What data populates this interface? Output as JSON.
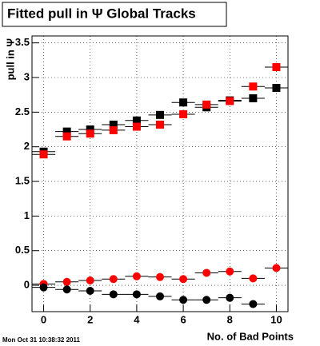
{
  "chart_data": {
    "type": "scatter",
    "title": "Fitted pull in Ψ   Global Tracks",
    "x_label": "No. of Bad Points",
    "y_label": "pull in Ψ",
    "footer": "Mon Oct 31 10:38:32 2011",
    "x": [
      0,
      1,
      2,
      3,
      4,
      5,
      6,
      7,
      8,
      9,
      10
    ],
    "series": [
      {
        "color": "#000000",
        "marker": "square",
        "values": [
          1.93,
          2.22,
          2.25,
          2.32,
          2.38,
          2.46,
          2.64,
          2.57,
          2.67,
          2.7,
          2.85
        ]
      },
      {
        "color": "#ff0000",
        "marker": "square",
        "values": [
          1.89,
          2.15,
          2.19,
          2.24,
          2.29,
          2.32,
          2.47,
          2.61,
          2.66,
          2.87,
          3.15
        ]
      },
      {
        "color": "#ff0000",
        "marker": "circle",
        "values": [
          0.02,
          0.05,
          0.07,
          0.09,
          0.13,
          0.12,
          0.09,
          0.18,
          0.2,
          0.1,
          0.25
        ]
      },
      {
        "color": "#000000",
        "marker": "circle",
        "values": [
          -0.03,
          -0.06,
          -0.08,
          -0.13,
          -0.13,
          -0.16,
          -0.21,
          -0.21,
          -0.18,
          -0.27,
          null
        ]
      }
    ],
    "xlim": [
      -0.5,
      10.5
    ],
    "xticks": [
      0,
      2,
      4,
      6,
      8,
      10
    ],
    "ylim": [
      -0.38,
      3.6
    ],
    "yticks": [
      0,
      0.5,
      1,
      1.5,
      2,
      2.5,
      3,
      3.5
    ],
    "grid": true
  }
}
